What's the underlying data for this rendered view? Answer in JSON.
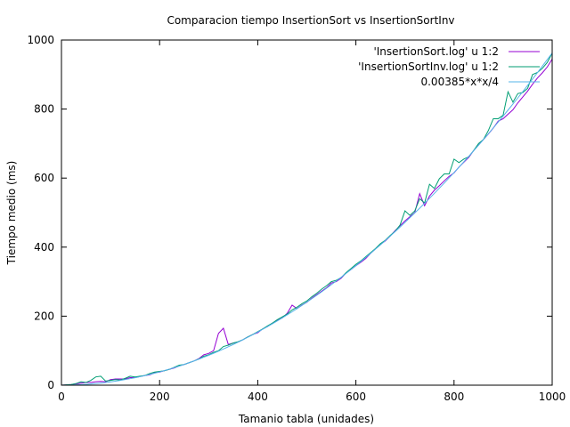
{
  "chart_data": {
    "type": "line",
    "title": "Comparacion tiempo InsertionSort vs InsertionSortInv",
    "xlabel": "Tamanio tabla (unidades)",
    "ylabel": "Tiempo medio (ms)",
    "xlim": [
      0,
      1000
    ],
    "ylim": [
      0,
      1000
    ],
    "xticks": [
      0,
      200,
      400,
      600,
      800,
      1000
    ],
    "yticks": [
      0,
      200,
      400,
      600,
      800,
      1000
    ],
    "grid": false,
    "legend_position": "top-right",
    "series": [
      {
        "name": "'InsertionSort.log' u 1:2",
        "color": "#9400d3",
        "x": [
          0,
          10,
          20,
          30,
          40,
          50,
          60,
          70,
          80,
          90,
          100,
          110,
          120,
          130,
          140,
          150,
          160,
          170,
          180,
          190,
          200,
          210,
          220,
          230,
          240,
          250,
          260,
          270,
          280,
          290,
          300,
          310,
          320,
          330,
          340,
          350,
          360,
          370,
          380,
          390,
          400,
          410,
          420,
          430,
          440,
          450,
          460,
          470,
          480,
          490,
          500,
          510,
          520,
          530,
          540,
          550,
          560,
          570,
          580,
          590,
          600,
          610,
          620,
          630,
          640,
          650,
          660,
          670,
          680,
          690,
          700,
          710,
          720,
          730,
          740,
          750,
          760,
          770,
          780,
          790,
          800,
          810,
          820,
          830,
          840,
          850,
          860,
          870,
          880,
          890,
          900,
          910,
          920,
          930,
          940,
          950,
          960,
          970,
          980,
          990,
          1000
        ],
        "y": [
          0,
          1,
          2,
          4,
          6,
          8,
          8,
          10,
          11,
          10,
          16,
          18,
          18,
          18,
          22,
          22,
          25,
          28,
          30,
          36,
          38,
          42,
          46,
          50,
          56,
          60,
          65,
          70,
          77,
          88,
          92,
          100,
          150,
          165,
          118,
          122,
          125,
          132,
          140,
          147,
          152,
          163,
          170,
          180,
          188,
          195,
          208,
          232,
          222,
          232,
          240,
          252,
          262,
          272,
          282,
          296,
          300,
          310,
          325,
          335,
          346,
          356,
          367,
          382,
          395,
          408,
          418,
          432,
          448,
          462,
          476,
          488,
          500,
          555,
          520,
          548,
          565,
          578,
          592,
          605,
          615,
          632,
          646,
          660,
          680,
          696,
          712,
          728,
          745,
          765,
          772,
          785,
          798,
          818,
          835,
          852,
          872,
          890,
          905,
          922,
          945
        ]
      },
      {
        "name": "'InsertionSortInv.log' u 1:2",
        "color": "#009e73",
        "x": [
          0,
          10,
          20,
          30,
          40,
          50,
          60,
          70,
          80,
          90,
          100,
          110,
          120,
          130,
          140,
          150,
          160,
          170,
          180,
          190,
          200,
          210,
          220,
          230,
          240,
          250,
          260,
          270,
          280,
          290,
          300,
          310,
          320,
          330,
          340,
          350,
          360,
          370,
          380,
          390,
          400,
          410,
          420,
          430,
          440,
          450,
          460,
          470,
          480,
          490,
          500,
          510,
          520,
          530,
          540,
          550,
          560,
          570,
          580,
          590,
          600,
          610,
          620,
          630,
          640,
          650,
          660,
          670,
          680,
          690,
          700,
          710,
          720,
          730,
          740,
          750,
          760,
          770,
          780,
          790,
          800,
          810,
          820,
          830,
          840,
          850,
          860,
          870,
          880,
          890,
          900,
          910,
          920,
          930,
          940,
          950,
          960,
          970,
          980,
          990,
          1000
        ],
        "y": [
          0,
          1,
          2,
          5,
          10,
          8,
          14,
          24,
          26,
          12,
          14,
          16,
          15,
          20,
          26,
          24,
          26,
          28,
          34,
          38,
          40,
          42,
          46,
          52,
          58,
          60,
          65,
          70,
          76,
          84,
          88,
          95,
          100,
          112,
          116,
          122,
          126,
          132,
          140,
          147,
          155,
          163,
          172,
          180,
          190,
          198,
          206,
          218,
          226,
          236,
          244,
          256,
          266,
          278,
          288,
          300,
          304,
          312,
          326,
          338,
          350,
          360,
          372,
          384,
          396,
          410,
          420,
          434,
          446,
          464,
          505,
          492,
          505,
          540,
          528,
          582,
          570,
          598,
          612,
          612,
          655,
          645,
          655,
          662,
          680,
          700,
          712,
          738,
          772,
          772,
          782,
          850,
          820,
          845,
          848,
          860,
          900,
          906,
          918,
          935,
          962
        ]
      },
      {
        "name": "0.00385*x*x/4",
        "color": "#56b4e9",
        "function": "0.00385*x*x/4",
        "samples": 101
      }
    ]
  }
}
